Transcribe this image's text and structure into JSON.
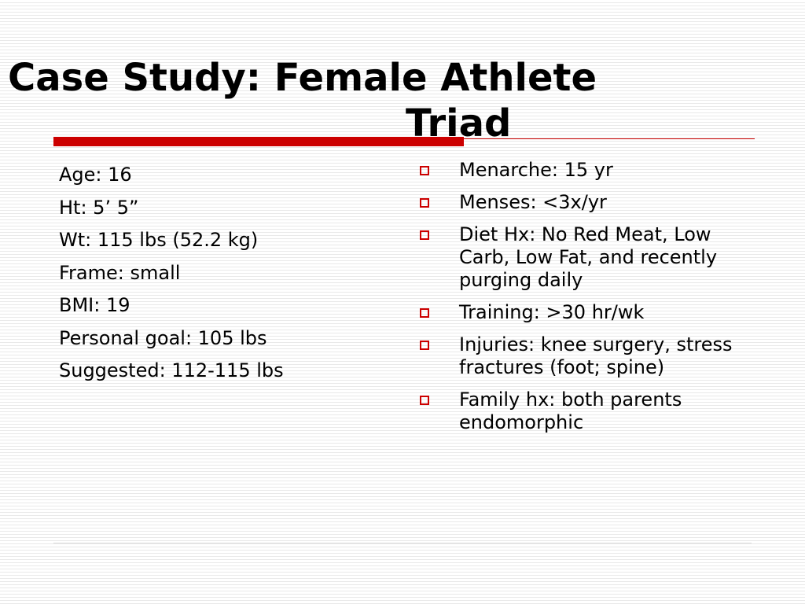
{
  "slide": {
    "title_line1": "Case Study: Female Athlete",
    "title_line2": "Triad"
  },
  "left_column": [
    "Age: 16",
    "Ht: 5’ 5”",
    "Wt: 115 lbs (52.2 kg)",
    "Frame: small",
    "BMI: 19",
    "Personal goal: 105 lbs",
    "Suggested: 112-115 lbs"
  ],
  "right_column": [
    "Menarche: 15 yr",
    "Menses: <3x/yr",
    "Diet Hx: No Red Meat, Low Carb, Low Fat, and recently purging daily",
    "Training: >30 hr/wk",
    "Injuries: knee surgery, stress fractures (foot; spine)",
    "Family hx: both parents endomorphic"
  ],
  "colors": {
    "accent": "#cc0000",
    "text": "#000000",
    "stripe": "#e9e9e9"
  },
  "icons": {
    "bullet": "hollow-square-bullet-icon"
  }
}
